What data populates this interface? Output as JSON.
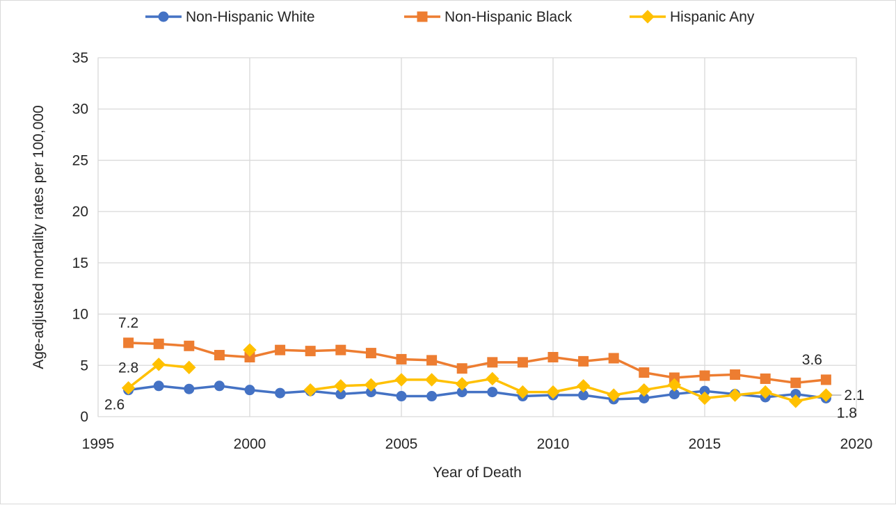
{
  "chart_data": {
    "type": "line",
    "xlabel": "Year of Death",
    "ylabel": "Age-adjusted mortality rates per 100,000",
    "xlim": [
      1995,
      2020
    ],
    "ylim": [
      0,
      35
    ],
    "xticks": [
      1995,
      2000,
      2005,
      2010,
      2015,
      2020
    ],
    "yticks": [
      0,
      5,
      10,
      15,
      20,
      25,
      30,
      35
    ],
    "grid": true,
    "legend_position": "top",
    "series": [
      {
        "name": "Non-Hispanic White",
        "color": "#4472c4",
        "marker": "circle",
        "points": [
          [
            1996,
            2.6
          ],
          [
            1997,
            3.0
          ],
          [
            1998,
            2.7
          ],
          [
            1999,
            3.0
          ],
          [
            2000,
            2.6
          ],
          [
            2001,
            2.3
          ],
          [
            2002,
            2.5
          ],
          [
            2003,
            2.2
          ],
          [
            2004,
            2.4
          ],
          [
            2005,
            2.0
          ],
          [
            2006,
            2.0
          ],
          [
            2007,
            2.4
          ],
          [
            2008,
            2.4
          ],
          [
            2009,
            2.0
          ],
          [
            2010,
            2.1
          ],
          [
            2011,
            2.1
          ],
          [
            2012,
            1.7
          ],
          [
            2013,
            1.8
          ],
          [
            2014,
            2.2
          ],
          [
            2015,
            2.5
          ],
          [
            2016,
            2.2
          ],
          [
            2017,
            1.9
          ],
          [
            2018,
            2.2
          ],
          [
            2019,
            1.8
          ]
        ]
      },
      {
        "name": "Non-Hispanic Black",
        "color": "#ed7d31",
        "marker": "square",
        "points": [
          [
            1996,
            7.2
          ],
          [
            1997,
            7.1
          ],
          [
            1998,
            6.9
          ],
          [
            1999,
            6.0
          ],
          [
            2000,
            5.8
          ],
          [
            2001,
            6.5
          ],
          [
            2002,
            6.4
          ],
          [
            2003,
            6.5
          ],
          [
            2004,
            6.2
          ],
          [
            2005,
            5.6
          ],
          [
            2006,
            5.5
          ],
          [
            2007,
            4.7
          ],
          [
            2008,
            5.3
          ],
          [
            2009,
            5.3
          ],
          [
            2010,
            5.8
          ],
          [
            2011,
            5.4
          ],
          [
            2012,
            5.7
          ],
          [
            2013,
            4.3
          ],
          [
            2014,
            3.8
          ],
          [
            2015,
            4.0
          ],
          [
            2016,
            4.1
          ],
          [
            2017,
            3.7
          ],
          [
            2018,
            3.3
          ],
          [
            2019,
            3.6
          ]
        ]
      },
      {
        "name": "Hispanic Any",
        "color": "#ffc000",
        "marker": "diamond",
        "segments": [
          [
            [
              1996,
              2.8
            ],
            [
              1997,
              5.1
            ],
            [
              1998,
              4.8
            ]
          ],
          [
            [
              2000,
              6.5
            ]
          ],
          [
            [
              2002,
              2.6
            ],
            [
              2003,
              3.0
            ],
            [
              2004,
              3.1
            ],
            [
              2005,
              3.6
            ],
            [
              2006,
              3.6
            ],
            [
              2007,
              3.2
            ],
            [
              2008,
              3.7
            ],
            [
              2009,
              2.4
            ],
            [
              2010,
              2.4
            ],
            [
              2011,
              3.0
            ],
            [
              2012,
              2.1
            ],
            [
              2013,
              2.6
            ],
            [
              2014,
              3.1
            ],
            [
              2015,
              1.8
            ],
            [
              2016,
              2.1
            ],
            [
              2017,
              2.4
            ],
            [
              2018,
              1.5
            ],
            [
              2019,
              2.1
            ]
          ]
        ]
      }
    ],
    "annotations": [
      {
        "text": "7.2",
        "x": 1996,
        "y": 7.2,
        "pos": "above"
      },
      {
        "text": "2.8",
        "x": 1996,
        "y": 2.8,
        "pos": "above"
      },
      {
        "text": "2.6",
        "x": 1996,
        "y": 2.6,
        "pos": "below"
      },
      {
        "text": "3.6",
        "x": 2019,
        "y": 3.6,
        "pos": "above"
      },
      {
        "text": "2.1",
        "x": 2019,
        "y": 2.1,
        "pos": "right"
      },
      {
        "text": "1.8",
        "x": 2019,
        "y": 1.8,
        "pos": "below"
      }
    ]
  }
}
